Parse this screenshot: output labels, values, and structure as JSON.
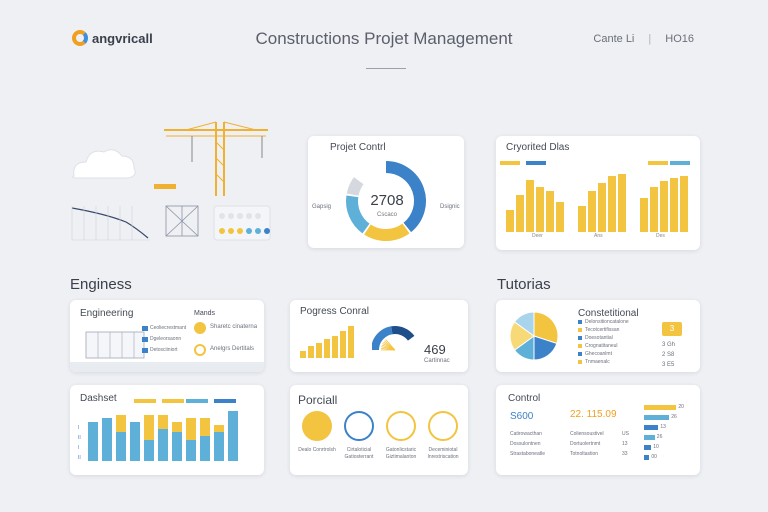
{
  "header": {
    "logo": "angvricall",
    "title": "Constructions Projet Management",
    "right_a": "Cante Li",
    "right_b": "HO16"
  },
  "sections": {
    "left": "Enginess",
    "right": "Tutorias"
  },
  "projet_control": {
    "title": "Projet Contrl",
    "center_value": "2708",
    "center_sub": "Cscaco",
    "left_label": "Gapsig",
    "right_label": "Dsignic",
    "segments": [
      {
        "value": 40,
        "color": "#3c82c8"
      },
      {
        "value": 20,
        "color": "#f3c440"
      },
      {
        "value": 18,
        "color": "#5eb0d8"
      },
      {
        "value": 8,
        "color": "#d5d9df"
      }
    ]
  },
  "organized_dlas": {
    "title": "Cryorited Dlas",
    "legend_colors": [
      "#f3c440",
      "#3c82c8",
      "#f3c440",
      "#5eb0d8",
      "#d5d9df"
    ],
    "groups": [
      {
        "label": "Deer",
        "values": [
          30,
          50,
          70,
          60,
          55,
          40
        ]
      },
      {
        "label": "Ans",
        "values": [
          35,
          55,
          65,
          75,
          78
        ]
      },
      {
        "label": "Des",
        "values": [
          45,
          60,
          68,
          72,
          75
        ]
      }
    ]
  },
  "engineering": {
    "title": "Engineering",
    "side_title": "Mands",
    "rows": [
      "Ceoliecrestmant",
      "Dgeleorsaonn",
      "Detosciiniort"
    ],
    "notes": [
      "Sharetc cinaterna",
      "Anelgrs Dertitals"
    ]
  },
  "progress_control": {
    "title": "Pogress Conral",
    "value": "469",
    "value_sub": "Cartinnac",
    "bars": [
      20,
      35,
      45,
      55,
      65,
      80,
      95
    ]
  },
  "constructional": {
    "title": "Constetitional",
    "rows": [
      "Delonsitioncatalone",
      "Tecotcertifissan",
      "Doesotantial",
      "Crognatitaneul",
      "Ghecoanlmt",
      "Tnmaenalc"
    ],
    "badge": "3",
    "right_items": [
      "3 Gh",
      "2 S8",
      "3 E5"
    ],
    "pie": [
      {
        "value": 30,
        "color": "#f3c440"
      },
      {
        "value": 20,
        "color": "#3c82c8"
      },
      {
        "value": 15,
        "color": "#5eb0d8"
      },
      {
        "value": 20,
        "color": "#f7d978"
      },
      {
        "value": 15,
        "color": "#a8d4ec"
      }
    ]
  },
  "dashset": {
    "title": "Dashset",
    "legend_colors": [
      "#f3c440",
      "#f3c440",
      "#5eb0d8",
      "#3c82c8"
    ],
    "bars": [
      {
        "bottom": 55,
        "top": 0
      },
      {
        "bottom": 60,
        "top": 0
      },
      {
        "bottom": 40,
        "top": 25
      },
      {
        "bottom": 55,
        "top": 0
      },
      {
        "bottom": 30,
        "top": 35
      },
      {
        "bottom": 45,
        "top": 20
      },
      {
        "bottom": 40,
        "top": 15
      },
      {
        "bottom": 30,
        "top": 30
      },
      {
        "bottom": 35,
        "top": 25
      },
      {
        "bottom": 40,
        "top": 10
      },
      {
        "bottom": 70,
        "top": 0
      }
    ],
    "ticks": [
      "I",
      "II",
      "I",
      "II"
    ]
  },
  "porcial": {
    "title": "Porciall",
    "items": [
      {
        "label": "Dealo Conrtrolsh",
        "icon": "coin-icon"
      },
      {
        "label": "Cirtaloticial Gatiosterrant",
        "icon": "pie-icon"
      },
      {
        "label": "Gatonlicstaric Giztimalanton",
        "icon": "gear-icon"
      },
      {
        "label": "Deceminiotal Inrestriscation",
        "icon": "crane-icon"
      }
    ]
  },
  "control": {
    "title": "Control",
    "value_a": "S600",
    "value_b": "22.  115.09",
    "list": [
      "Catirowacthan",
      "Dossulontnen",
      "Strastaboneatle"
    ],
    "list_mid": [
      "Coliensoustivel",
      "Dortuolertnmt",
      "Totnoltastion"
    ],
    "list_end": [
      "US",
      "13",
      "33"
    ],
    "hbars": [
      {
        "value": 90,
        "label": "20",
        "color": "#f3c440"
      },
      {
        "value": 70,
        "label": "26",
        "color": "#5eb0d8"
      },
      {
        "value": 40,
        "label": "13",
        "color": "#3c82c8"
      },
      {
        "value": 30,
        "label": "26",
        "color": "#5eb0d8"
      },
      {
        "value": 20,
        "label": "10",
        "color": "#3c82c8"
      },
      {
        "value": 15,
        "label": "00",
        "color": "#3c82c8"
      }
    ]
  }
}
